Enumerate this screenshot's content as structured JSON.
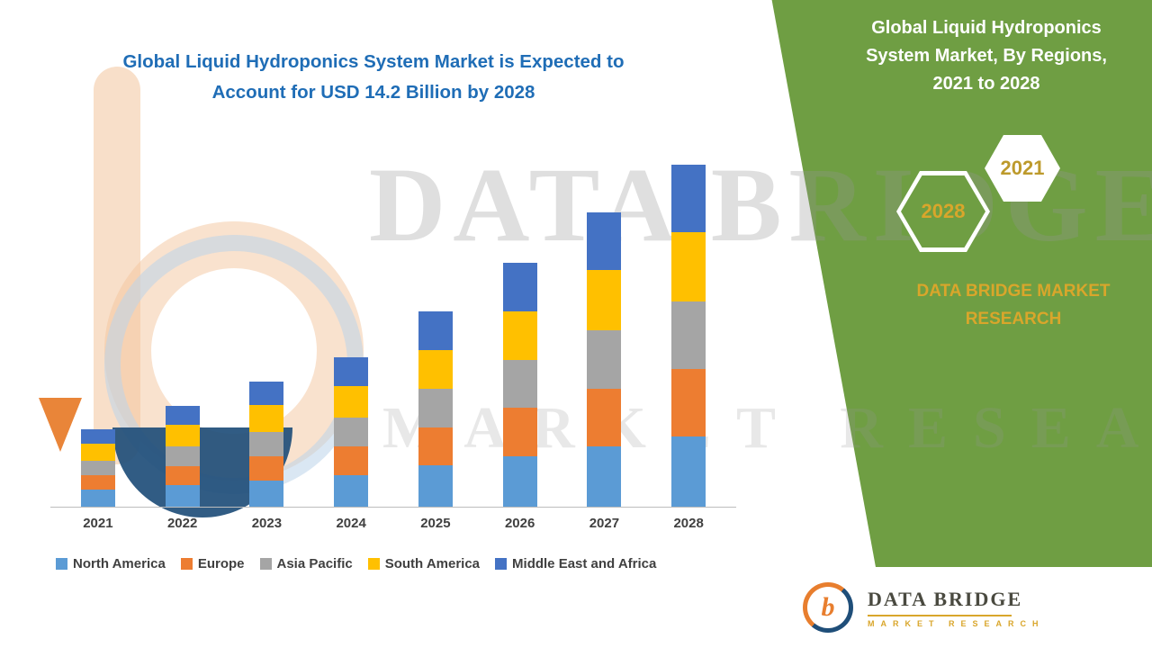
{
  "title": {
    "line1": "Global Liquid Hydroponics System Market is Expected to",
    "line2": "Account for USD 14.2 Billion by 2028"
  },
  "side_panel": {
    "title_line1": "Global Liquid Hydroponics",
    "title_line2": "System Market, By Regions,",
    "title_line3": "2021 to 2028",
    "hexagon_left_year": "2028",
    "hexagon_right_year": "2021",
    "brand_line1": "DATA BRIDGE MARKET",
    "brand_line2": "RESEARCH",
    "panel_color": "#6f9e43",
    "accent_gold": "#d9a62b"
  },
  "watermark": {
    "line1": "DATA BRIDGE",
    "line2": "MARKET RESEARCH"
  },
  "logo": {
    "name": "DATA BRIDGE",
    "subtext": "MARKET RESEARCH",
    "monogram": "b"
  },
  "chart_data": {
    "type": "bar",
    "stacked": true,
    "title": "Global Liquid Hydroponics System Market is Expected to Account for USD 14.2 Billion by 2028",
    "categories": [
      "2021",
      "2022",
      "2023",
      "2024",
      "2025",
      "2026",
      "2027",
      "2028"
    ],
    "series": [
      {
        "name": "North America",
        "color": "#5b9bd5",
        "values": [
          0.7,
          0.9,
          1.1,
          1.3,
          1.7,
          2.1,
          2.5,
          2.9
        ]
      },
      {
        "name": "Europe",
        "color": "#ed7d31",
        "values": [
          0.6,
          0.8,
          1.0,
          1.2,
          1.6,
          2.0,
          2.4,
          2.8
        ]
      },
      {
        "name": "Asia Pacific",
        "color": "#a5a5a5",
        "values": [
          0.6,
          0.8,
          1.0,
          1.2,
          1.6,
          2.0,
          2.4,
          2.8
        ]
      },
      {
        "name": "South America",
        "color": "#ffc000",
        "values": [
          0.7,
          0.9,
          1.1,
          1.3,
          1.6,
          2.0,
          2.5,
          2.9
        ]
      },
      {
        "name": "Middle East and Africa",
        "color": "#4472c4",
        "values": [
          0.6,
          0.8,
          1.0,
          1.2,
          1.6,
          2.0,
          2.4,
          2.8
        ]
      }
    ],
    "totals": [
      3.2,
      4.2,
      5.2,
      6.2,
      8.1,
      10.1,
      12.2,
      14.2
    ],
    "unit_label": "USD Billion (implied by title)",
    "ylim": [
      0,
      14.5
    ],
    "grid": false,
    "legend_position": "bottom"
  }
}
